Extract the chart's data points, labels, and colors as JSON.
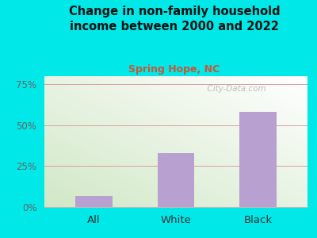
{
  "title": "Change in non-family household\nincome between 2000 and 2022",
  "subtitle": "Spring Hope, NC",
  "categories": [
    "All",
    "White",
    "Black"
  ],
  "values": [
    7,
    33,
    58
  ],
  "bar_color": "#b8a0d0",
  "title_color": "#111111",
  "subtitle_color": "#cc5533",
  "background_outer": "#00e8e8",
  "yticks": [
    0,
    25,
    50,
    75
  ],
  "ytick_labels": [
    "0%",
    "25%",
    "50%",
    "75%"
  ],
  "ymax": 80,
  "grid_color": "#dda0a0",
  "watermark": "  City-Data.com",
  "watermark_color": "#aaaaaa"
}
